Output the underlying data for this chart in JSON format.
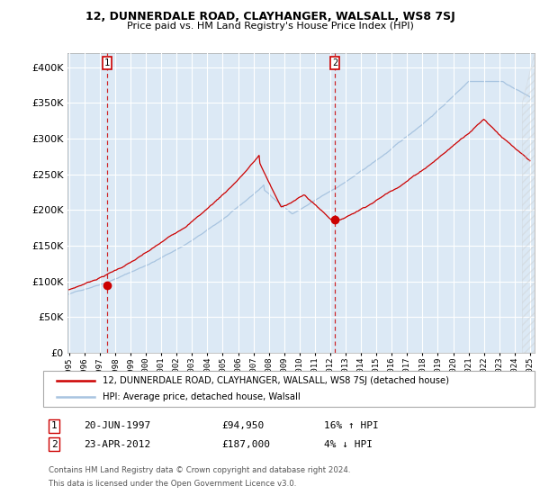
{
  "title": "12, DUNNERDALE ROAD, CLAYHANGER, WALSALL, WS8 7SJ",
  "subtitle": "Price paid vs. HM Land Registry's House Price Index (HPI)",
  "legend_line1": "12, DUNNERDALE ROAD, CLAYHANGER, WALSALL, WS8 7SJ (detached house)",
  "legend_line2": "HPI: Average price, detached house, Walsall",
  "annotation1_date": "20-JUN-1997",
  "annotation1_price": "£94,950",
  "annotation1_hpi": "16% ↑ HPI",
  "annotation2_date": "23-APR-2012",
  "annotation2_price": "£187,000",
  "annotation2_hpi": "4% ↓ HPI",
  "footnote1": "Contains HM Land Registry data © Crown copyright and database right 2024.",
  "footnote2": "This data is licensed under the Open Government Licence v3.0.",
  "fig_bg_color": "#ffffff",
  "plot_bg_color": "#dce9f5",
  "grid_color": "#ffffff",
  "hpi_line_color": "#a8c4e0",
  "price_line_color": "#cc0000",
  "marker_color": "#cc0000",
  "dashed_line_color": "#cc0000",
  "ylim": [
    0,
    420000
  ],
  "yticks": [
    0,
    50000,
    100000,
    150000,
    200000,
    250000,
    300000,
    350000,
    400000
  ],
  "sale1_year": 1997.47,
  "sale1_price": 94950,
  "sale2_year": 2012.31,
  "sale2_price": 187000,
  "xstart": 1995,
  "xend": 2025
}
